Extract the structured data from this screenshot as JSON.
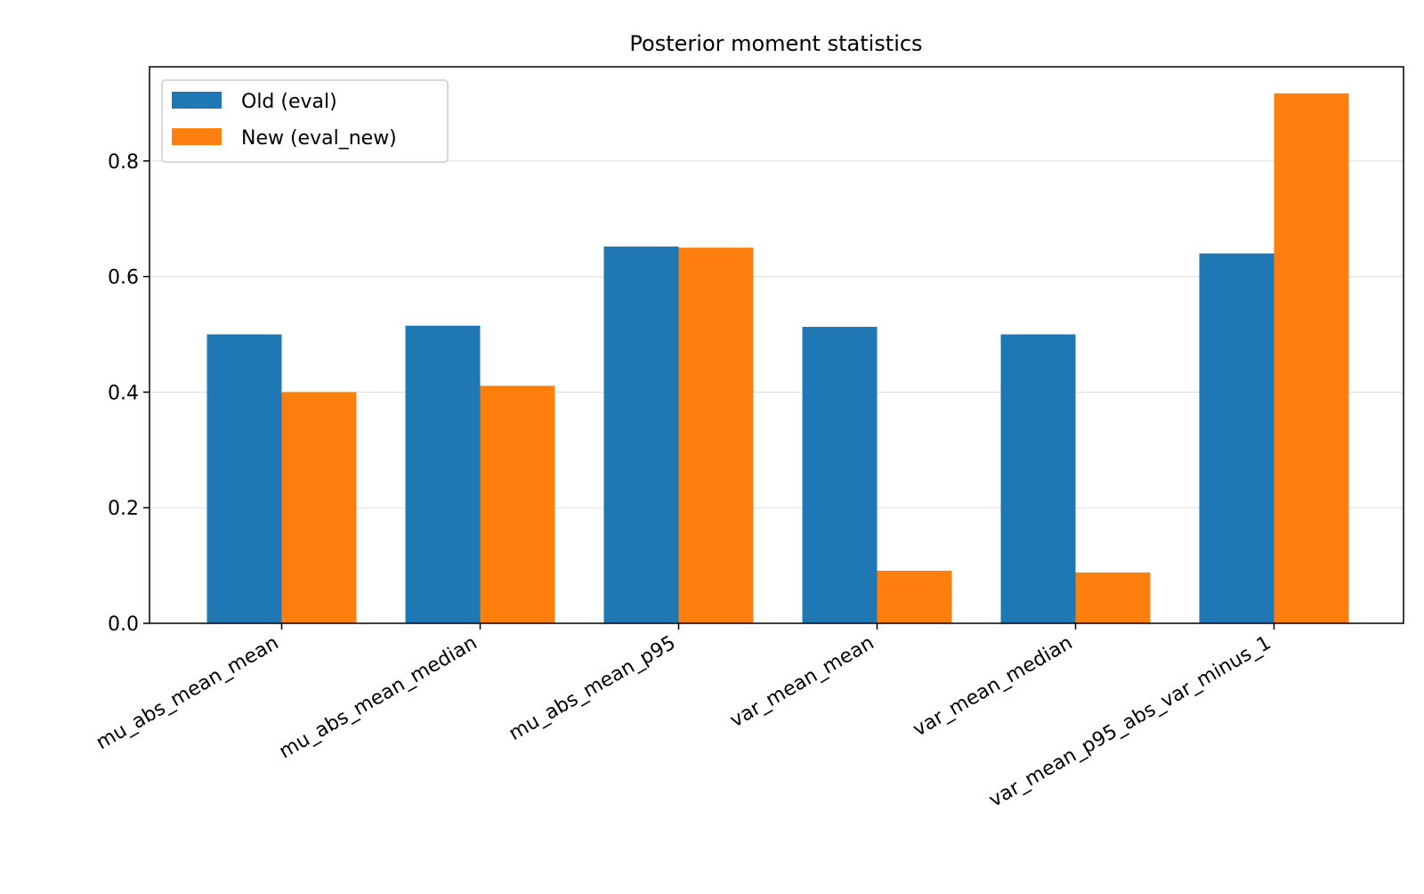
{
  "chart_data": {
    "type": "bar",
    "title": "Posterior moment statistics",
    "xlabel": "",
    "ylabel": "",
    "categories": [
      "mu_abs_mean_mean",
      "mu_abs_mean_median",
      "mu_abs_mean_p95",
      "var_mean_mean",
      "var_mean_median",
      "var_mean_p95_abs_var_minus_1"
    ],
    "series": [
      {
        "name": "Old (eval)",
        "color": "#1f77b4",
        "values": [
          0.5,
          0.515,
          0.652,
          0.513,
          0.5,
          0.64
        ]
      },
      {
        "name": "New (eval_new)",
        "color": "#ff7f0e",
        "values": [
          0.4,
          0.411,
          0.65,
          0.091,
          0.088,
          0.917
        ]
      }
    ],
    "ylim": [
      0,
      0.963
    ],
    "yticks": [
      0.0,
      0.2,
      0.4,
      0.6,
      0.8
    ],
    "ytick_labels": [
      "0.0",
      "0.2",
      "0.4",
      "0.6",
      "0.8"
    ],
    "grid": "horizontal",
    "legend_position": "top-left"
  }
}
